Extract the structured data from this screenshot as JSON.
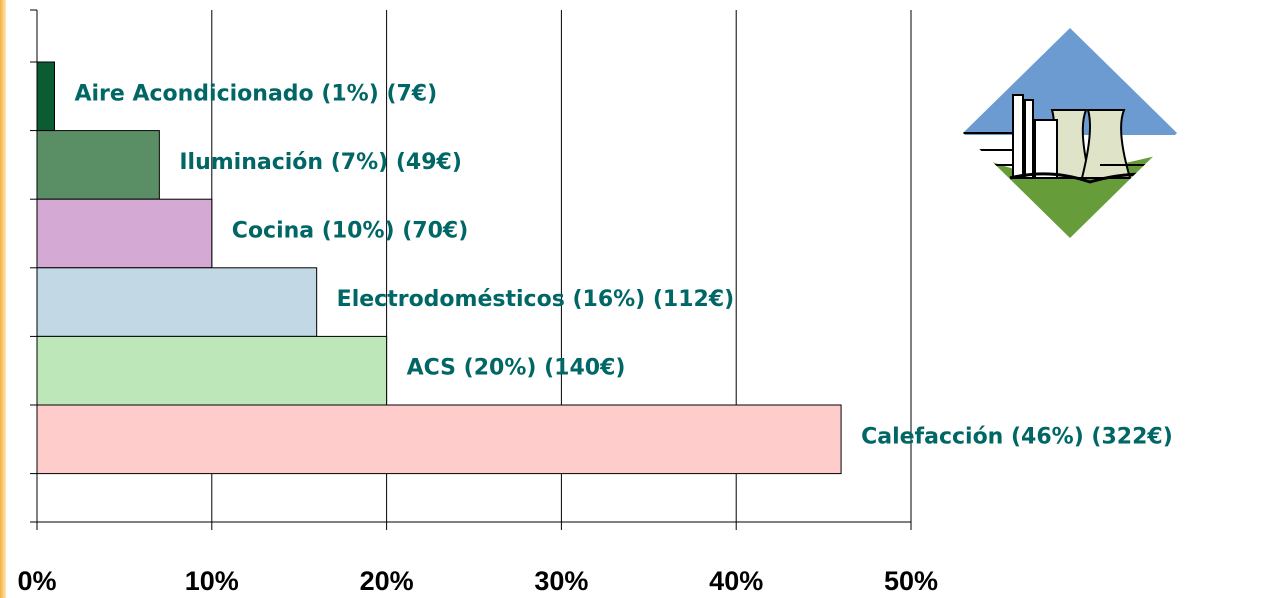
{
  "chart_data": {
    "type": "bar",
    "orientation": "horizontal",
    "categories": [
      "Aire Acondicionado (1%) (7€)",
      "Iluminación (7%) (49€)",
      "Cocina (10%) (70€)",
      "Electrodomésticos (16%) (112€)",
      "ACS (20%) (140€)",
      "Calefacción (46%) (322€)"
    ],
    "values": [
      1,
      7,
      10,
      16,
      20,
      46
    ],
    "colors": [
      "#0b5b33",
      "#5a8f66",
      "#d4a9d4",
      "#c2d9e5",
      "#bde6b9",
      "#ffcccc"
    ],
    "xlim": [
      0,
      50
    ],
    "xticks": [
      {
        "value": 0,
        "label": "0%"
      },
      {
        "value": 10,
        "label": "10%"
      },
      {
        "value": 20,
        "label": "20%"
      },
      {
        "value": 30,
        "label": "30%"
      },
      {
        "value": 40,
        "label": "40%"
      },
      {
        "value": 50,
        "label": "50%"
      }
    ],
    "grid": true
  }
}
